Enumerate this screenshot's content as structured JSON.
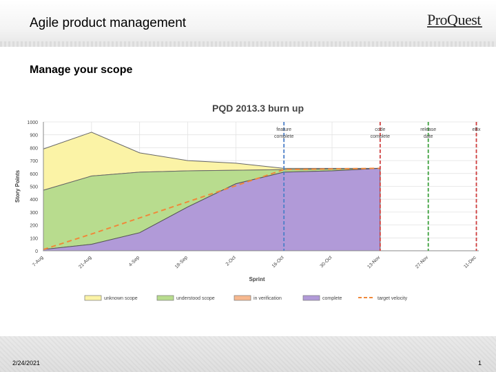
{
  "header": {
    "title": "Agile product management",
    "logo_text": "ProQuest"
  },
  "slide": {
    "subtitle": "Manage your scope"
  },
  "footer": {
    "date": "2/24/2021",
    "page": "1"
  },
  "colors": {
    "unknown": "#fbf3a6",
    "understood": "#b8dc8e",
    "verification": "#f7b88f",
    "complete": "#b19ad8",
    "target": "#f0883a",
    "feature_line": "#4a7ec8",
    "code_line": "#cf3d3d",
    "release_line": "#3aa03a"
  },
  "chart_data": {
    "type": "area",
    "title": "PQD 2013.3 burn up",
    "xlabel": "Sprint",
    "ylabel": "Story Points",
    "ylim": [
      0,
      1000
    ],
    "yticks": [
      "0",
      "100",
      "200",
      "300",
      "400",
      "500",
      "600",
      "700",
      "800",
      "900",
      "1000"
    ],
    "categories": [
      "7-Aug",
      "21-Aug",
      "4-Sep",
      "18-Sep",
      "2-Oct",
      "16-Oct",
      "30-Oct",
      "13-Nov",
      "27-Nov",
      "11-Dec"
    ],
    "series": [
      {
        "name": "unknown scope",
        "x": [
          0,
          1,
          2,
          3,
          4,
          5,
          6,
          7
        ],
        "values": [
          790,
          920,
          760,
          700,
          680,
          640,
          640,
          640
        ]
      },
      {
        "name": "understood scope",
        "x": [
          0,
          1,
          2,
          3,
          4,
          5,
          6,
          7
        ],
        "values": [
          470,
          580,
          610,
          620,
          625,
          630,
          635,
          640
        ]
      },
      {
        "name": "in verification",
        "x": [
          0,
          1,
          2,
          3,
          4,
          5,
          6,
          7
        ],
        "values": [
          10,
          50,
          140,
          340,
          520,
          610,
          620,
          640
        ]
      },
      {
        "name": "complete",
        "x": [
          0,
          1,
          2,
          3,
          4,
          5,
          6,
          7
        ],
        "values": [
          10,
          50,
          140,
          340,
          520,
          610,
          620,
          640
        ]
      },
      {
        "name": "target velocity",
        "x": [
          0,
          1,
          2,
          3,
          4,
          5,
          6,
          7
        ],
        "values": [
          10,
          130,
          255,
          380,
          505,
          630,
          635,
          640
        ]
      }
    ],
    "markers": [
      {
        "label": "feature\ncomplete",
        "x": 5,
        "color": "#4a7ec8"
      },
      {
        "label": "code\ncomplete",
        "x": 7,
        "color": "#cf3d3d"
      },
      {
        "label": "release\ndate",
        "x": 8,
        "color": "#3aa03a"
      },
      {
        "label": "eBx",
        "x": 9,
        "color": "#cf3d3d"
      }
    ],
    "legend": [
      "unknown scope",
      "understood scope",
      "in verification",
      "complete",
      "target velocity"
    ],
    "legend_position": "bottom",
    "grid": true
  }
}
